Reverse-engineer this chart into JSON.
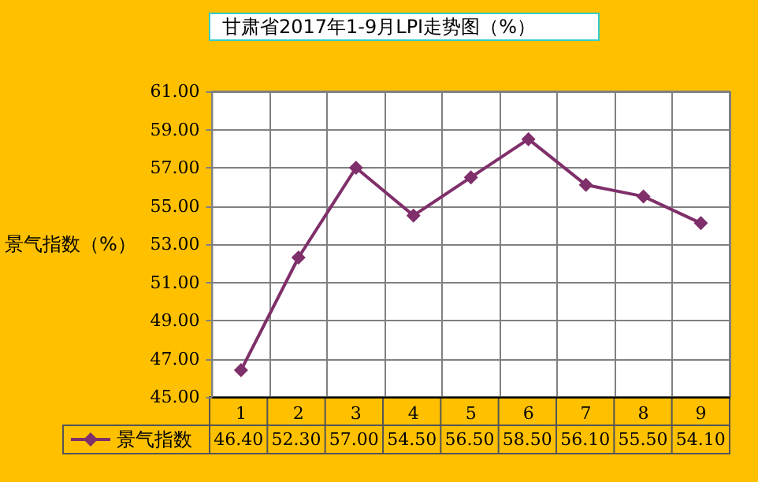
{
  "chart_data": {
    "type": "line",
    "title": "甘肃省2017年1-9月LPI走势图（%）",
    "ylabel": "景气指数（%）",
    "categories": [
      "1",
      "2",
      "3",
      "4",
      "5",
      "6",
      "7",
      "8",
      "9"
    ],
    "series": [
      {
        "name": "景气指数",
        "color": "#7f2f6a",
        "values": [
          46.4,
          52.3,
          57.0,
          54.5,
          56.5,
          58.5,
          56.1,
          55.5,
          54.1
        ],
        "value_labels": [
          "46.40",
          "52.30",
          "57.00",
          "54.50",
          "56.50",
          "58.50",
          "56.10",
          "55.50",
          "54.10"
        ]
      }
    ],
    "ylim": [
      45,
      61
    ],
    "yticks": [
      {
        "value": 45,
        "label": "45.00"
      },
      {
        "value": 47,
        "label": "47.00"
      },
      {
        "value": 49,
        "label": "49.00"
      },
      {
        "value": 51,
        "label": "51.00"
      },
      {
        "value": 53,
        "label": "53.00"
      },
      {
        "value": 55,
        "label": "55.00"
      },
      {
        "value": 57,
        "label": "57.00"
      },
      {
        "value": 59,
        "label": "59.00"
      },
      {
        "value": 61,
        "label": "61.00"
      }
    ],
    "grid": true,
    "legend": "bottom left",
    "marker": "diamond",
    "line_style": "solid"
  }
}
